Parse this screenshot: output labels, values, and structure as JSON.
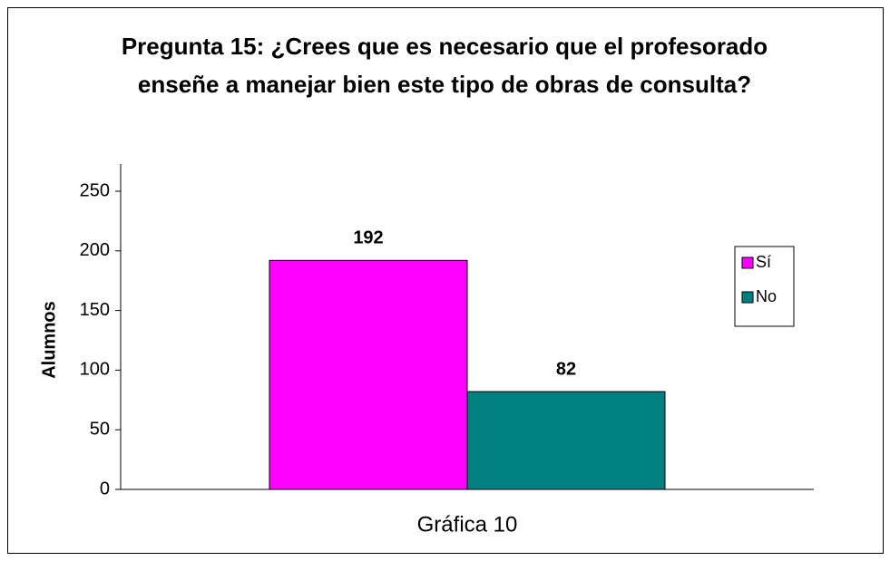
{
  "chart_data": {
    "type": "bar",
    "title": "Pregunta 15: ¿Crees que es necesario que el profesorado enseñe a manejar bien este tipo de obras de consulta?",
    "ylabel": "Alumnos",
    "categories": [
      "Gráfica 10"
    ],
    "series": [
      {
        "name": "Sí",
        "color": "#ff00ff",
        "values": [
          192
        ]
      },
      {
        "name": "No",
        "color": "#008080",
        "values": [
          82
        ]
      }
    ],
    "ylim": [
      0,
      250
    ],
    "yticks": [
      0,
      50,
      100,
      150,
      200,
      250
    ],
    "grid": false,
    "legend": "right"
  }
}
